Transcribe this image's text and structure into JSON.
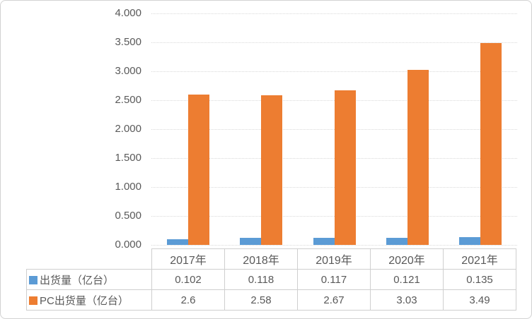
{
  "colors": {
    "series1": "#5B9BD5",
    "series2": "#ED7D31",
    "text": "#595959",
    "gridline": "#d9d9d9",
    "table_border": "#cfcfcf",
    "frame_border": "#d2d2d2",
    "background": "#ffffff"
  },
  "chart_data": {
    "type": "bar",
    "title": "",
    "xlabel": "",
    "ylabel": "",
    "categories": [
      "2017年",
      "2018年",
      "2019年",
      "2020年",
      "2021年"
    ],
    "series": [
      {
        "name": "出货量（亿台）",
        "color": "#5B9BD5",
        "values": [
          0.102,
          0.118,
          0.117,
          0.121,
          0.135
        ],
        "labels": [
          "0.102",
          "0.118",
          "0.117",
          "0.121",
          "0.135"
        ]
      },
      {
        "name": "PC出货量（亿台）",
        "color": "#ED7D31",
        "values": [
          2.6,
          2.58,
          2.67,
          3.03,
          3.49
        ],
        "labels": [
          "2.6",
          "2.58",
          "2.67",
          "3.03",
          "3.49"
        ]
      }
    ],
    "ylim": [
      0,
      4
    ],
    "ytick_step": 0.5,
    "ytick_labels": [
      "0.000",
      "0.500",
      "1.000",
      "1.500",
      "2.000",
      "2.500",
      "3.000",
      "3.500",
      "4.000"
    ],
    "grid": true,
    "legend_position": "data-table-left-column",
    "data_table_shown": true
  }
}
